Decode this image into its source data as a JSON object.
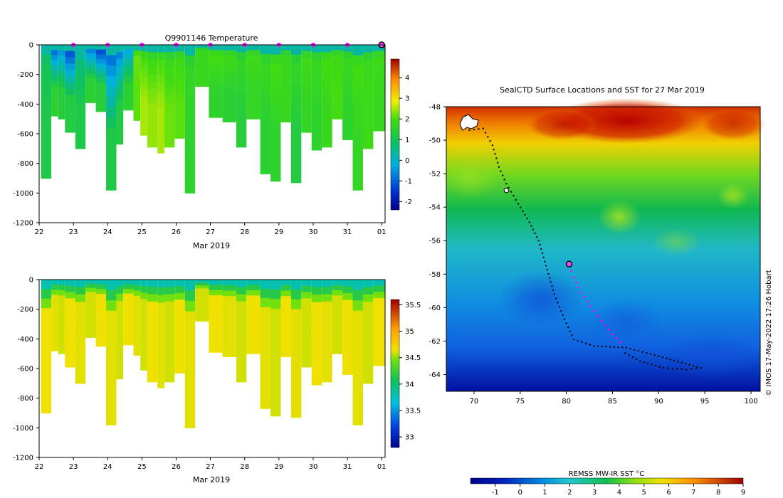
{
  "chart_data": [
    {
      "type": "heatmap",
      "title": "Q9901146  Temperature",
      "xlabel": "Mar 2019",
      "ylabel": "",
      "x_ticks": [
        "22",
        "23",
        "24",
        "25",
        "26",
        "27",
        "28",
        "29",
        "30",
        "31",
        "01"
      ],
      "x_values": [
        22,
        23,
        24,
        25,
        26,
        27,
        28,
        29,
        30,
        31,
        32
      ],
      "xlim": [
        22,
        32.1
      ],
      "y_ticks": [
        "0",
        "-200",
        "-400",
        "-600",
        "-800",
        "-1000",
        "-1200"
      ],
      "y_values": [
        0,
        -200,
        -400,
        -600,
        -800,
        -1000,
        -1200
      ],
      "ylim": [
        -1200,
        0
      ],
      "colorbar_ticks": [
        "4",
        "3",
        "2",
        "1",
        "0",
        "-1",
        "-2"
      ],
      "colorbar_values": [
        4,
        3,
        2,
        1,
        0,
        -1,
        -2
      ],
      "colorbar_range": [
        -2.4,
        4.9
      ],
      "profile_markers_day": [
        23,
        24,
        25,
        26,
        27,
        28,
        29,
        30,
        31
      ],
      "current_marker_day": 32,
      "profiles": [
        {
          "day": 22.2,
          "depth": -900,
          "surface": 0.4,
          "deep": 1.2
        },
        {
          "day": 22.5,
          "depth": -480,
          "surface": -1.2,
          "deep": 1.5
        },
        {
          "day": 22.7,
          "depth": -500,
          "surface": -0.8,
          "deep": 1.4
        },
        {
          "day": 22.9,
          "depth": -590,
          "surface": -1.5,
          "deep": 1.3
        },
        {
          "day": 23.2,
          "depth": -700,
          "surface": 0.0,
          "deep": 1.2
        },
        {
          "day": 23.5,
          "depth": -390,
          "surface": -1.0,
          "deep": 1.5
        },
        {
          "day": 23.8,
          "depth": -450,
          "surface": -1.6,
          "deep": 1.4
        },
        {
          "day": 24.1,
          "depth": -980,
          "surface": -1.2,
          "deep": 1.2
        },
        {
          "day": 24.4,
          "depth": -670,
          "surface": -1.0,
          "deep": 1.3
        },
        {
          "day": 24.6,
          "depth": -440,
          "surface": -0.6,
          "deep": 1.5
        },
        {
          "day": 24.9,
          "depth": -510,
          "surface": 1.6,
          "deep": 2.1
        },
        {
          "day": 25.1,
          "depth": -610,
          "surface": 1.4,
          "deep": 2.5
        },
        {
          "day": 25.3,
          "depth": -690,
          "surface": 1.3,
          "deep": 2.4
        },
        {
          "day": 25.6,
          "depth": -730,
          "surface": 1.4,
          "deep": 2.5
        },
        {
          "day": 25.8,
          "depth": -690,
          "surface": 1.2,
          "deep": 2.2
        },
        {
          "day": 26.1,
          "depth": -630,
          "surface": 1.3,
          "deep": 2.1
        },
        {
          "day": 26.4,
          "depth": -1000,
          "surface": 1.1,
          "deep": 1.6
        },
        {
          "day": 26.7,
          "depth": -280,
          "surface": 1.2,
          "deep": 1.8
        },
        {
          "day": 27.1,
          "depth": -490,
          "surface": 1.4,
          "deep": 1.6
        },
        {
          "day": 27.5,
          "depth": -520,
          "surface": 1.3,
          "deep": 1.5
        },
        {
          "day": 27.9,
          "depth": -690,
          "surface": 1.1,
          "deep": 1.4
        },
        {
          "day": 28.2,
          "depth": -500,
          "surface": 1.3,
          "deep": 1.7
        },
        {
          "day": 28.6,
          "depth": -870,
          "surface": 1.2,
          "deep": 1.5
        },
        {
          "day": 28.9,
          "depth": -920,
          "surface": 1.4,
          "deep": 1.6
        },
        {
          "day": 29.2,
          "depth": -520,
          "surface": 1.2,
          "deep": 1.8
        },
        {
          "day": 29.5,
          "depth": -930,
          "surface": 1.1,
          "deep": 1.3
        },
        {
          "day": 29.8,
          "depth": -590,
          "surface": 1.3,
          "deep": 1.7
        },
        {
          "day": 30.1,
          "depth": -710,
          "surface": 1.2,
          "deep": 1.6
        },
        {
          "day": 30.4,
          "depth": -690,
          "surface": 1.4,
          "deep": 1.8
        },
        {
          "day": 30.7,
          "depth": -500,
          "surface": 1.3,
          "deep": 2.0
        },
        {
          "day": 31.0,
          "depth": -640,
          "surface": 1.2,
          "deep": 1.6
        },
        {
          "day": 31.3,
          "depth": -980,
          "surface": 1.4,
          "deep": 1.7
        },
        {
          "day": 31.6,
          "depth": -700,
          "surface": 1.2,
          "deep": 1.9
        },
        {
          "day": 31.9,
          "depth": -580,
          "surface": 1.3,
          "deep": 1.8
        }
      ]
    },
    {
      "type": "heatmap",
      "title": "",
      "xlabel": "Mar 2019",
      "ylabel": "",
      "x_ticks": [
        "22",
        "23",
        "24",
        "25",
        "26",
        "27",
        "28",
        "29",
        "30",
        "31",
        "01"
      ],
      "x_values": [
        22,
        23,
        24,
        25,
        26,
        27,
        28,
        29,
        30,
        31,
        32
      ],
      "xlim": [
        22,
        32.1
      ],
      "y_ticks": [
        "0",
        "-200",
        "-400",
        "-600",
        "-800",
        "-1000",
        "-1200"
      ],
      "y_values": [
        0,
        -200,
        -400,
        -600,
        -800,
        -1000,
        -1200
      ],
      "ylim": [
        -1200,
        0
      ],
      "colorbar_ticks": [
        "35.5",
        "35",
        "34.5",
        "34",
        "33.5",
        "33"
      ],
      "colorbar_values": [
        35.5,
        35,
        34.5,
        34,
        33.5,
        33
      ],
      "colorbar_range": [
        32.8,
        35.6
      ],
      "surface_salinity": 33.8,
      "deep_salinity": 34.65
    },
    {
      "type": "heatmap",
      "title": "SealCTD Surface Locations and SST for 27 Mar 2019",
      "xlabel": "",
      "ylabel": "",
      "x_ticks": [
        "70",
        "75",
        "80",
        "85",
        "90",
        "95",
        "100"
      ],
      "x_values": [
        70,
        75,
        80,
        85,
        90,
        95,
        100
      ],
      "xlim": [
        67,
        101
      ],
      "y_ticks": [
        "-48",
        "-50",
        "-52",
        "-54",
        "-56",
        "-58",
        "-60",
        "-62",
        "-64"
      ],
      "y_values": [
        -48,
        -50,
        -52,
        -54,
        -56,
        -58,
        -60,
        -62,
        -64
      ],
      "ylim": [
        -65,
        -48
      ],
      "colorbar_label": "REMSS MW-IR SST °C",
      "colorbar_ticks": [
        "-1",
        "0",
        "1",
        "2",
        "3",
        "4",
        "5",
        "6",
        "7",
        "8",
        "9"
      ],
      "colorbar_values": [
        -1,
        0,
        1,
        2,
        3,
        4,
        5,
        6,
        7,
        8,
        9
      ],
      "colorbar_range": [
        -2,
        9
      ],
      "credit": "© IMOS 17-May-2022 17:26 Hobart",
      "track": [
        [
          69.5,
          -49.4
        ],
        [
          71.0,
          -49.3
        ],
        [
          72.0,
          -50.3
        ],
        [
          72.7,
          -51.6
        ],
        [
          73.5,
          -52.6
        ],
        [
          74.8,
          -53.8
        ],
        [
          76.0,
          -54.9
        ],
        [
          77.0,
          -56.0
        ],
        [
          77.8,
          -57.5
        ],
        [
          78.7,
          -59.2
        ],
        [
          79.8,
          -60.7
        ],
        [
          80.8,
          -61.9
        ],
        [
          83.0,
          -62.3
        ],
        [
          86.5,
          -62.4
        ],
        [
          90.0,
          -62.9
        ],
        [
          92.5,
          -63.3
        ],
        [
          94.6,
          -63.6
        ],
        [
          93.0,
          -63.7
        ],
        [
          90.5,
          -63.6
        ],
        [
          88.0,
          -63.2
        ],
        [
          86.0,
          -62.6
        ]
      ],
      "recent_track": [
        [
          80.3,
          -57.4
        ],
        [
          80.8,
          -58.2
        ],
        [
          81.6,
          -59.1
        ],
        [
          82.6,
          -59.9
        ],
        [
          83.8,
          -60.8
        ],
        [
          85.0,
          -61.6
        ],
        [
          86.3,
          -62.3
        ]
      ],
      "current_position": [
        80.3,
        -57.4
      ]
    }
  ]
}
